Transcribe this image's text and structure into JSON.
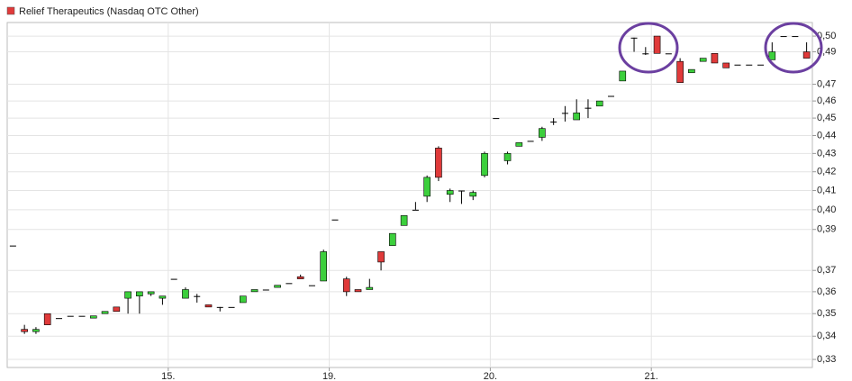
{
  "chart_data": {
    "type": "candlestick",
    "title": "Relief Therapeutics (Nasdaq OTC Other)",
    "categories": [
      null,
      null,
      null,
      null,
      null,
      null,
      null,
      null,
      null,
      null,
      null,
      null,
      null,
      null,
      "15.",
      null,
      null,
      null,
      null,
      null,
      null,
      null,
      null,
      null,
      null,
      null,
      null,
      null,
      "19.",
      null,
      null,
      null,
      null,
      null,
      null,
      null,
      null,
      null,
      null,
      null,
      null,
      null,
      "20.",
      null,
      null,
      null,
      null,
      null,
      null,
      null,
      null,
      null,
      null,
      null,
      null,
      null,
      "21.",
      null,
      null,
      null,
      null,
      null,
      null,
      null,
      null,
      null,
      null,
      null,
      null,
      null
    ],
    "open": [
      0.382,
      0.343,
      0.342,
      0.35,
      0.348,
      0.349,
      0.349,
      0.348,
      0.35,
      0.353,
      0.357,
      0.358,
      0.359,
      0.357,
      0.366,
      0.357,
      0.358,
      0.354,
      0.353,
      0.353,
      0.355,
      0.36,
      0.361,
      0.362,
      0.364,
      0.367,
      0.363,
      0.365,
      0.395,
      0.366,
      0.361,
      0.361,
      0.379,
      0.382,
      0.392,
      0.4,
      0.407,
      0.433,
      0.408,
      0.41,
      0.407,
      0.418,
      0.45,
      0.426,
      0.434,
      0.437,
      0.439,
      0.448,
      0.453,
      0.449,
      0.456,
      0.457,
      0.463,
      0.472,
      0.499,
      0.489,
      0.5,
      0.489,
      0.484,
      0.477,
      0.484,
      0.489,
      0.483,
      0.482,
      0.482,
      0.482,
      0.485,
      0.5,
      0.5,
      0.49
    ],
    "high": [
      0.382,
      0.345,
      0.344,
      0.35,
      0.348,
      0.349,
      0.349,
      0.349,
      0.351,
      0.353,
      0.36,
      0.36,
      0.36,
      0.358,
      0.366,
      0.362,
      0.359,
      0.354,
      0.353,
      0.353,
      0.358,
      0.361,
      0.361,
      0.363,
      0.364,
      0.368,
      0.363,
      0.38,
      0.395,
      0.367,
      0.361,
      0.366,
      0.379,
      0.388,
      0.397,
      0.404,
      0.418,
      0.434,
      0.411,
      0.41,
      0.41,
      0.431,
      0.45,
      0.431,
      0.436,
      0.437,
      0.445,
      0.45,
      0.457,
      0.461,
      0.461,
      0.46,
      0.463,
      0.478,
      0.499,
      0.493,
      0.5,
      0.489,
      0.486,
      0.479,
      0.486,
      0.489,
      0.483,
      0.482,
      0.482,
      0.482,
      0.496,
      0.5,
      0.5,
      0.496
    ],
    "low": [
      0.382,
      0.341,
      0.341,
      0.345,
      0.348,
      0.349,
      0.349,
      0.348,
      0.35,
      0.351,
      0.35,
      0.35,
      0.358,
      0.354,
      0.366,
      0.357,
      0.355,
      0.353,
      0.351,
      0.353,
      0.355,
      0.36,
      0.361,
      0.362,
      0.364,
      0.366,
      0.363,
      0.365,
      0.395,
      0.358,
      0.36,
      0.361,
      0.37,
      0.382,
      0.392,
      0.4,
      0.404,
      0.415,
      0.404,
      0.403,
      0.405,
      0.417,
      0.45,
      0.424,
      0.434,
      0.437,
      0.437,
      0.446,
      0.448,
      0.449,
      0.45,
      0.457,
      0.463,
      0.472,
      0.49,
      0.488,
      0.489,
      0.489,
      0.471,
      0.477,
      0.484,
      0.483,
      0.48,
      0.482,
      0.482,
      0.482,
      0.485,
      0.5,
      0.5,
      0.486
    ],
    "close": [
      0.382,
      0.342,
      0.343,
      0.345,
      0.348,
      0.349,
      0.349,
      0.349,
      0.351,
      0.351,
      0.36,
      0.36,
      0.36,
      0.358,
      0.366,
      0.361,
      0.358,
      0.353,
      0.353,
      0.353,
      0.358,
      0.361,
      0.361,
      0.363,
      0.364,
      0.366,
      0.363,
      0.379,
      0.395,
      0.36,
      0.36,
      0.362,
      0.374,
      0.388,
      0.397,
      0.4,
      0.417,
      0.417,
      0.41,
      0.41,
      0.409,
      0.43,
      0.45,
      0.43,
      0.436,
      0.437,
      0.444,
      0.448,
      0.453,
      0.453,
      0.456,
      0.46,
      0.463,
      0.478,
      0.499,
      0.489,
      0.489,
      0.489,
      0.471,
      0.479,
      0.486,
      0.483,
      0.48,
      0.482,
      0.482,
      0.482,
      0.49,
      0.5,
      0.5,
      0.486
    ],
    "up_color": "#3ccf3c",
    "down_color": "#e03a3a",
    "ylim": [
      0.3266,
      0.5088
    ],
    "log_scale": true,
    "grid": true,
    "yticks": [
      {
        "value": 0.33,
        "label": "0,33"
      },
      {
        "value": 0.34,
        "label": "0,34"
      },
      {
        "value": 0.35,
        "label": "0,35"
      },
      {
        "value": 0.36,
        "label": "0,36"
      },
      {
        "value": 0.37,
        "label": "0,37"
      },
      {
        "value": 0.39,
        "label": "0,39"
      },
      {
        "value": 0.4,
        "label": "0,40"
      },
      {
        "value": 0.41,
        "label": "0,41"
      },
      {
        "value": 0.42,
        "label": "0,42"
      },
      {
        "value": 0.43,
        "label": "0,43"
      },
      {
        "value": 0.44,
        "label": "0,44"
      },
      {
        "value": 0.45,
        "label": "0,45"
      },
      {
        "value": 0.46,
        "label": "0,46"
      },
      {
        "value": 0.47,
        "label": "0,47"
      },
      {
        "value": 0.49,
        "label": "0,49"
      },
      {
        "value": 0.5,
        "label": "0,50"
      }
    ]
  }
}
